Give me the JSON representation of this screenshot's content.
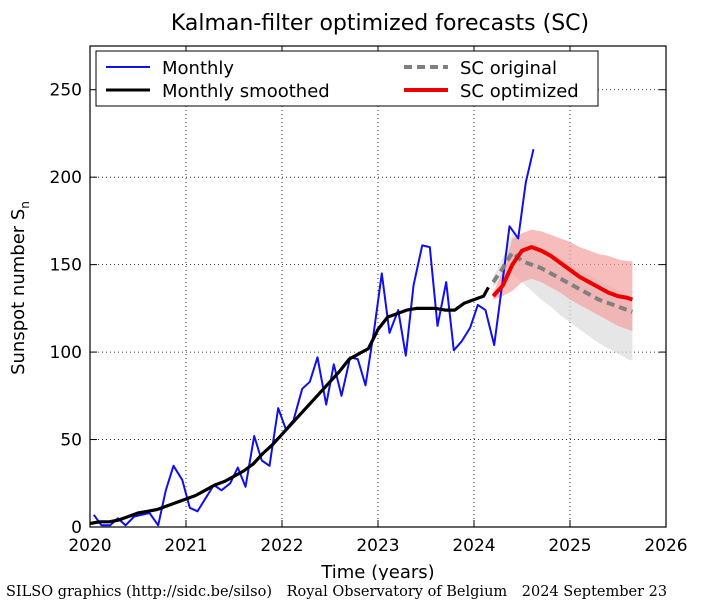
{
  "chart_data": {
    "type": "line",
    "title": "Kalman-filter optimized forecasts (SC)",
    "xlabel": "Time (years)",
    "ylabel": "Sunspot number S",
    "ylabel_subscript": "n",
    "xlim": [
      2020,
      2026
    ],
    "ylim": [
      0,
      275
    ],
    "xticks": [
      "2020",
      "2021",
      "2022",
      "2023",
      "2024",
      "2025",
      "2026"
    ],
    "yticks": [
      "0",
      "50",
      "100",
      "150",
      "200",
      "250"
    ],
    "grid": true,
    "legend_position": "top",
    "colors": {
      "monthly": "#1010ee",
      "smoothed": "#000000",
      "original": "#808080",
      "optimized": "#ee0000",
      "band_optimized": "#f4a0a0",
      "band_original": "#dcdcdc"
    },
    "series": [
      {
        "name": "Monthly",
        "x": [
          2020.04,
          2020.12,
          2020.21,
          2020.29,
          2020.37,
          2020.46,
          2020.54,
          2020.62,
          2020.71,
          2020.79,
          2020.87,
          2020.96,
          2021.04,
          2021.12,
          2021.21,
          2021.29,
          2021.37,
          2021.46,
          2021.54,
          2021.62,
          2021.71,
          2021.79,
          2021.87,
          2021.96,
          2022.04,
          2022.12,
          2022.21,
          2022.29,
          2022.37,
          2022.46,
          2022.54,
          2022.62,
          2022.71,
          2022.79,
          2022.87,
          2022.96,
          2023.04,
          2023.12,
          2023.21,
          2023.29,
          2023.37,
          2023.46,
          2023.54,
          2023.62,
          2023.71,
          2023.79,
          2023.87,
          2023.96,
          2024.04,
          2024.12,
          2024.21,
          2024.29,
          2024.37,
          2024.46,
          2024.54,
          2024.62
        ],
        "values": [
          7,
          1,
          1,
          5,
          1,
          6,
          7,
          8,
          1,
          21,
          35,
          27,
          11,
          9,
          17,
          24,
          21,
          25,
          34,
          23,
          52,
          38,
          35,
          68,
          56,
          61,
          79,
          83,
          97,
          70,
          93,
          75,
          97,
          96,
          81,
          113,
          145,
          111,
          124,
          98,
          138,
          161,
          160,
          115,
          140,
          101,
          106,
          114,
          127,
          124,
          104,
          137,
          172,
          165,
          197,
          216
        ]
      },
      {
        "name": "Monthly smoothed",
        "x": [
          2020.0,
          2020.1,
          2020.2,
          2020.3,
          2020.4,
          2020.5,
          2020.6,
          2020.7,
          2020.8,
          2020.9,
          2021.0,
          2021.1,
          2021.2,
          2021.3,
          2021.4,
          2021.5,
          2021.6,
          2021.7,
          2021.8,
          2021.9,
          2022.0,
          2022.1,
          2022.2,
          2022.3,
          2022.4,
          2022.5,
          2022.6,
          2022.7,
          2022.8,
          2022.9,
          2023.0,
          2023.1,
          2023.2,
          2023.3,
          2023.4,
          2023.5,
          2023.6,
          2023.7,
          2023.8,
          2023.9,
          2024.0,
          2024.1,
          2024.15
        ],
        "values": [
          2,
          3,
          3,
          4,
          6,
          8,
          9,
          10,
          12,
          14,
          16,
          18,
          21,
          24,
          26,
          29,
          32,
          36,
          42,
          47,
          53,
          59,
          65,
          71,
          77,
          83,
          89,
          96,
          99,
          102,
          113,
          120,
          122,
          124,
          125,
          125,
          125,
          124,
          124,
          128,
          130,
          132,
          137
        ]
      },
      {
        "name": "SC original",
        "x": [
          2024.2,
          2024.3,
          2024.4,
          2024.5,
          2024.6,
          2024.7,
          2024.8,
          2024.9,
          2025.0,
          2025.1,
          2025.2,
          2025.3,
          2025.4,
          2025.5,
          2025.6,
          2025.65
        ],
        "values": [
          140,
          148,
          157,
          152,
          150,
          148,
          145,
          142,
          139,
          136,
          133,
          130,
          128,
          126,
          124,
          123
        ],
        "lower": [
          137,
          142,
          145,
          140,
          135,
          130,
          126,
          121,
          117,
          113,
          109,
          105,
          102,
          99,
          96,
          95
        ],
        "upper": [
          143,
          154,
          168,
          164,
          163,
          160,
          157,
          154,
          150,
          147,
          144,
          141,
          138,
          135,
          132,
          131
        ]
      },
      {
        "name": "SC optimized",
        "x": [
          2024.2,
          2024.3,
          2024.4,
          2024.5,
          2024.6,
          2024.7,
          2024.8,
          2024.9,
          2025.0,
          2025.1,
          2025.2,
          2025.3,
          2025.4,
          2025.5,
          2025.6,
          2025.65
        ],
        "values": [
          132,
          138,
          150,
          158,
          160,
          158,
          155,
          151,
          147,
          143,
          140,
          137,
          134,
          132,
          131,
          130
        ],
        "lower": [
          130,
          132,
          135,
          140,
          142,
          140,
          137,
          134,
          130,
          127,
          124,
          121,
          118,
          115,
          113,
          112
        ],
        "upper": [
          134,
          146,
          165,
          168,
          170,
          169,
          167,
          165,
          163,
          160,
          158,
          156,
          155,
          153,
          152,
          152
        ]
      }
    ]
  },
  "footer": {
    "source": "SILSO graphics (http://sidc.be/silso)",
    "org": "Royal Observatory of Belgium",
    "date": "2024 September 23"
  }
}
